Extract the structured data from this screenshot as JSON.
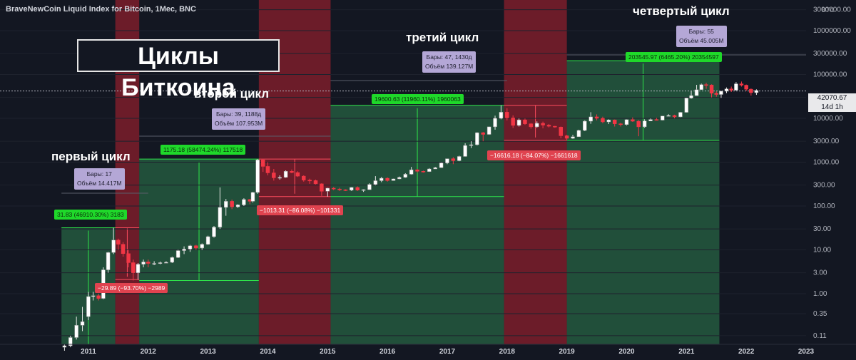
{
  "header": {
    "title": "BraveNewCoin Liquid Index for Bitcoin, 1Мес, BNC",
    "axis_unit": "BTC"
  },
  "overlay": {
    "main_title": "Циклы Биткоина",
    "cycles": [
      {
        "label": "первый цикл",
        "bars_line1": "Бары: 17",
        "bars_line2": "Объём 14.417M",
        "gain": "31.83 (46910.30%) 3183",
        "loss": "−29.89 (−93.70%) −2989"
      },
      {
        "label": "второй цикл",
        "bars_line1": "Бары: 39, 1188д",
        "bars_line2": "Объём 107.953M",
        "gain": "1175.18 (58474.24%) 117518",
        "loss": "−1013.31 (−86.08%) −101331"
      },
      {
        "label": "третий цикл",
        "bars_line1": "Бары: 47, 1430д",
        "bars_line2": "Объём 139.127M",
        "gain": "19600.63 (11960.11%) 1960063",
        "loss": "−16616.18 (−84.07%) −1661618"
      },
      {
        "label": "четвертый цикл",
        "bars_line1": "Бары: 55",
        "bars_line2": "Объём 45.005M",
        "gain": "203545.97 (6465.20%) 20354597",
        "loss": ""
      }
    ],
    "last_price": "42070.67",
    "countdown": "14d 1h"
  },
  "chart_data": {
    "type": "candlestick",
    "scale": "log",
    "y_ticks": [
      "3000000.00",
      "1000000.00",
      "300000.00",
      "100000.00",
      "30000.00",
      "10000.00",
      "3000.00",
      "1000.00",
      "300.00",
      "100.00",
      "30.00",
      "10.00",
      "3.00",
      "1.00",
      "0.35",
      "0.11"
    ],
    "y_tick_values": [
      3000000,
      1000000,
      300000,
      100000,
      30000,
      10000,
      3000,
      1000,
      300,
      100,
      30,
      10,
      3,
      1,
      0.35,
      0.11
    ],
    "x_ticks": [
      "2011",
      "2012",
      "2013",
      "2014",
      "2015",
      "2016",
      "2017",
      "2018",
      "2019",
      "2020",
      "2021",
      "2022",
      "2023"
    ],
    "x_range": [
      2010.5,
      2023.0
    ],
    "y_range": [
      0.07,
      5000000
    ],
    "zones": [
      {
        "type": "bull",
        "x0": 2010.55,
        "x1": 2011.45,
        "low": 0.05,
        "high": 31.83
      },
      {
        "type": "bear",
        "x0": 2011.45,
        "x1": 2011.85,
        "low": 2.1,
        "high": 31.83
      },
      {
        "type": "bull",
        "x0": 2011.85,
        "x1": 2013.85,
        "low": 2.0,
        "high": 1177
      },
      {
        "type": "bear",
        "x0": 2013.85,
        "x1": 2015.05,
        "low": 164,
        "high": 1177
      },
      {
        "type": "bull",
        "x0": 2015.05,
        "x1": 2017.95,
        "low": 164,
        "high": 19764
      },
      {
        "type": "bear",
        "x0": 2017.95,
        "x1": 2019.0,
        "low": 3148,
        "high": 19764
      },
      {
        "type": "bull",
        "x0": 2019.0,
        "x1": 2021.55,
        "low": 3148,
        "high": 206700
      }
    ],
    "candles": [
      [
        2010.6,
        0.06,
        0.065,
        0.05,
        0.07
      ],
      [
        2010.7,
        0.065,
        0.1,
        0.06,
        0.11
      ],
      [
        2010.8,
        0.1,
        0.19,
        0.09,
        0.3
      ],
      [
        2010.9,
        0.19,
        0.23,
        0.14,
        0.5
      ],
      [
        2011.0,
        0.3,
        0.86,
        0.25,
        1.1
      ],
      [
        2011.08,
        0.86,
        0.9,
        0.7,
        1.1
      ],
      [
        2011.17,
        0.9,
        0.78,
        0.7,
        1.0
      ],
      [
        2011.25,
        0.78,
        3.5,
        0.75,
        4
      ],
      [
        2011.33,
        3.5,
        8.7,
        3,
        9
      ],
      [
        2011.42,
        8.7,
        16.7,
        8,
        31.83
      ],
      [
        2011.5,
        16.7,
        13.4,
        10,
        18
      ],
      [
        2011.58,
        13.4,
        8.2,
        7,
        15
      ],
      [
        2011.67,
        8.2,
        5.1,
        4,
        10
      ],
      [
        2011.75,
        5.1,
        3.0,
        2,
        6
      ],
      [
        2011.83,
        3.0,
        4.7,
        2.1,
        5
      ],
      [
        2011.92,
        4.7,
        5.3,
        4,
        6
      ],
      [
        2012.0,
        5.3,
        4.9,
        4,
        6
      ],
      [
        2012.1,
        4.9,
        4.9,
        4.5,
        5.5
      ],
      [
        2012.2,
        4.9,
        5.1,
        4.7,
        5.4
      ],
      [
        2012.3,
        5.1,
        5.2,
        5,
        5.5
      ],
      [
        2012.4,
        5.2,
        6.7,
        5,
        7
      ],
      [
        2012.5,
        6.7,
        9.6,
        6.5,
        10
      ],
      [
        2012.6,
        9.6,
        10.4,
        8,
        12
      ],
      [
        2012.7,
        10.4,
        12.4,
        9,
        13
      ],
      [
        2012.8,
        12.4,
        11.0,
        10,
        13
      ],
      [
        2012.9,
        11.0,
        13.4,
        10,
        14
      ],
      [
        2013.0,
        13.4,
        20,
        13,
        21
      ],
      [
        2013.1,
        20,
        33,
        19,
        35
      ],
      [
        2013.2,
        33,
        93,
        30,
        266
      ],
      [
        2013.3,
        93,
        128,
        60,
        145
      ],
      [
        2013.4,
        128,
        96,
        85,
        140
      ],
      [
        2013.5,
        96,
        106,
        90,
        110
      ],
      [
        2013.6,
        106,
        141,
        100,
        150
      ],
      [
        2013.7,
        141,
        128,
        110,
        145
      ],
      [
        2013.75,
        128,
        204,
        120,
        210
      ],
      [
        2013.83,
        204,
        1130,
        190,
        1177
      ],
      [
        2013.92,
        1130,
        800,
        600,
        1177
      ],
      [
        2014.0,
        800,
        570,
        500,
        1000
      ],
      [
        2014.1,
        570,
        440,
        380,
        700
      ],
      [
        2014.2,
        440,
        450,
        400,
        500
      ],
      [
        2014.3,
        450,
        620,
        440,
        650
      ],
      [
        2014.4,
        620,
        580,
        560,
        680
      ],
      [
        2014.5,
        580,
        480,
        460,
        620
      ],
      [
        2014.6,
        480,
        390,
        360,
        500
      ],
      [
        2014.7,
        390,
        380,
        320,
        420
      ],
      [
        2014.8,
        380,
        320,
        310,
        400
      ],
      [
        2014.9,
        320,
        217,
        170,
        330
      ],
      [
        2015.0,
        217,
        255,
        164,
        260
      ],
      [
        2015.1,
        255,
        244,
        230,
        270
      ],
      [
        2015.2,
        244,
        235,
        220,
        260
      ],
      [
        2015.3,
        235,
        230,
        220,
        240
      ],
      [
        2015.4,
        230,
        265,
        220,
        270
      ],
      [
        2015.5,
        265,
        230,
        220,
        280
      ],
      [
        2015.6,
        230,
        236,
        210,
        240
      ],
      [
        2015.7,
        236,
        310,
        235,
        330
      ],
      [
        2015.8,
        310,
        378,
        300,
        480
      ],
      [
        2015.9,
        378,
        430,
        350,
        460
      ],
      [
        2016.0,
        430,
        380,
        360,
        450
      ],
      [
        2016.1,
        380,
        415,
        380,
        420
      ],
      [
        2016.2,
        415,
        450,
        410,
        470
      ],
      [
        2016.3,
        450,
        530,
        440,
        560
      ],
      [
        2016.4,
        530,
        670,
        520,
        780
      ],
      [
        2016.5,
        670,
        620,
        580,
        700
      ],
      [
        2016.6,
        620,
        610,
        580,
        640
      ],
      [
        2016.7,
        610,
        700,
        600,
        730
      ],
      [
        2016.8,
        700,
        750,
        700,
        780
      ],
      [
        2016.9,
        750,
        960,
        740,
        980
      ],
      [
        2017.0,
        960,
        1200,
        900,
        1200
      ],
      [
        2017.1,
        1200,
        1080,
        900,
        1300
      ],
      [
        2017.2,
        1080,
        1350,
        1050,
        1400
      ],
      [
        2017.3,
        1350,
        2400,
        1340,
        2700
      ],
      [
        2017.4,
        2400,
        2500,
        2100,
        3000
      ],
      [
        2017.5,
        2500,
        4700,
        2400,
        4800
      ],
      [
        2017.6,
        4700,
        4300,
        3000,
        4900
      ],
      [
        2017.7,
        4300,
        6400,
        4200,
        6500
      ],
      [
        2017.8,
        6400,
        10000,
        5500,
        11500
      ],
      [
        2017.9,
        10000,
        13800,
        9500,
        19764
      ],
      [
        2018.0,
        13800,
        10200,
        9000,
        17000
      ],
      [
        2018.1,
        10200,
        6900,
        6000,
        11700
      ],
      [
        2018.2,
        6900,
        9200,
        6500,
        9900
      ],
      [
        2018.3,
        9200,
        7500,
        7100,
        9900
      ],
      [
        2018.4,
        7500,
        6400,
        5800,
        7800
      ],
      [
        2018.5,
        6400,
        7700,
        6100,
        8500
      ],
      [
        2018.6,
        7700,
        7000,
        5900,
        8400
      ],
      [
        2018.7,
        7000,
        6600,
        6200,
        7400
      ],
      [
        2018.8,
        6600,
        6300,
        6100,
        6700
      ],
      [
        2018.9,
        6300,
        4000,
        3500,
        6500
      ],
      [
        2019.0,
        4000,
        3500,
        3148,
        4200
      ],
      [
        2019.1,
        3500,
        3800,
        3400,
        4200
      ],
      [
        2019.2,
        3800,
        5300,
        3800,
        5500
      ],
      [
        2019.3,
        5300,
        8600,
        5100,
        9000
      ],
      [
        2019.4,
        8600,
        10800,
        7500,
        13800
      ],
      [
        2019.5,
        10800,
        10000,
        9000,
        12300
      ],
      [
        2019.6,
        10000,
        8300,
        7700,
        10900
      ],
      [
        2019.7,
        8300,
        9200,
        7400,
        9500
      ],
      [
        2019.8,
        9200,
        7500,
        6500,
        9400
      ],
      [
        2019.9,
        7500,
        7200,
        6500,
        7900
      ],
      [
        2020.0,
        7200,
        9350,
        6900,
        9500
      ],
      [
        2020.1,
        9350,
        8600,
        8300,
        10500
      ],
      [
        2020.2,
        8600,
        6400,
        3900,
        9100
      ],
      [
        2020.3,
        6400,
        8700,
        6100,
        9500
      ],
      [
        2020.4,
        8700,
        9400,
        8600,
        9900
      ],
      [
        2020.5,
        9400,
        9100,
        8900,
        10200
      ],
      [
        2020.6,
        9100,
        11300,
        9000,
        11400
      ],
      [
        2020.7,
        11300,
        11600,
        11200,
        12400
      ],
      [
        2020.8,
        11600,
        10800,
        10000,
        12100
      ],
      [
        2020.9,
        10800,
        13700,
        10600,
        13900
      ],
      [
        2021.0,
        13700,
        29000,
        13600,
        29300
      ],
      [
        2021.08,
        29000,
        33000,
        28000,
        41900
      ],
      [
        2021.17,
        33000,
        45000,
        33000,
        58000
      ],
      [
        2021.25,
        45000,
        58800,
        45000,
        61700
      ],
      [
        2021.33,
        58800,
        57700,
        47000,
        64800
      ],
      [
        2021.42,
        57700,
        37300,
        30000,
        59500
      ],
      [
        2021.5,
        37300,
        35000,
        31100,
        41300
      ],
      [
        2021.58,
        35000,
        41600,
        29300,
        42400
      ],
      [
        2021.67,
        41600,
        47000,
        37700,
        50500
      ],
      [
        2021.75,
        47000,
        43800,
        40000,
        52900
      ],
      [
        2021.83,
        43800,
        61300,
        43300,
        67000
      ],
      [
        2021.92,
        61300,
        57000,
        53000,
        69000
      ],
      [
        2022.0,
        57000,
        46200,
        42000,
        59000
      ],
      [
        2022.08,
        46200,
        38500,
        33000,
        48000
      ],
      [
        2022.17,
        38500,
        43200,
        34300,
        45800
      ]
    ]
  }
}
